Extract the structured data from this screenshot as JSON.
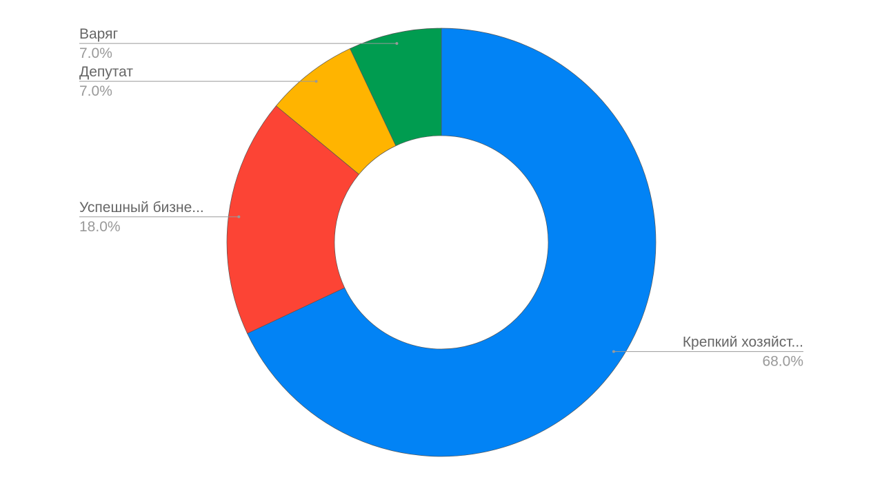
{
  "chart_data": {
    "type": "donut",
    "categories": [
      "Крепкий хозяйст...",
      "Успешный бизне...",
      "Депутат",
      "Варяг"
    ],
    "values": [
      68,
      18,
      7,
      7
    ],
    "value_labels": [
      "68.0%",
      "18.0%",
      "7.0%",
      "7.0%"
    ],
    "colors": [
      "#0283f5",
      "#fc4435",
      "#ffb400",
      "#009c50"
    ]
  }
}
